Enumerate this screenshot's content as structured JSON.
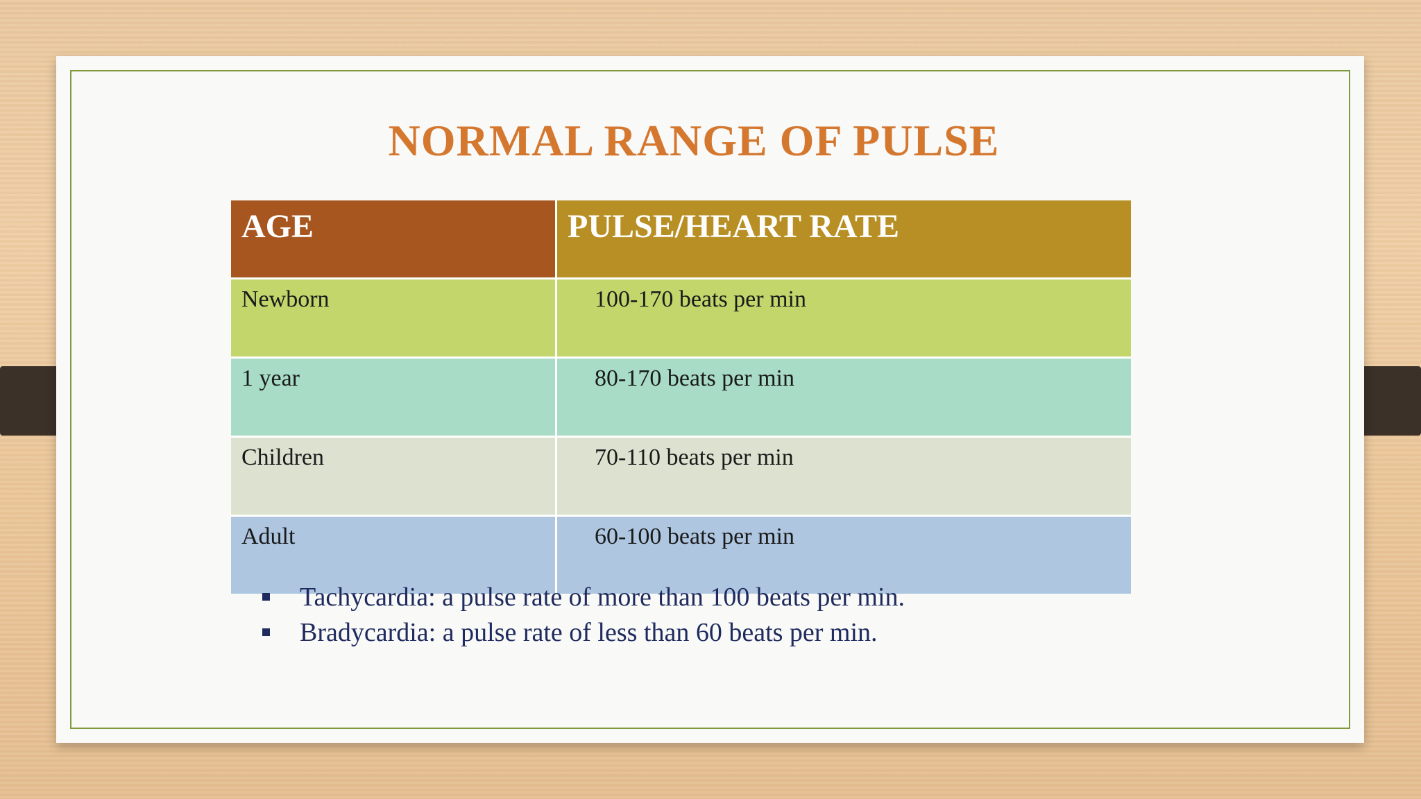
{
  "slide": {
    "title": "NORMAL RANGE OF PULSE"
  },
  "table": {
    "headers": [
      "AGE",
      "PULSE/HEART RATE"
    ],
    "rows": [
      {
        "age": "Newborn",
        "rate": "100-170 beats per min"
      },
      {
        "age": "1 year",
        "rate": "80-170 beats per min"
      },
      {
        "age": "Children",
        "rate": "70-110 beats per min"
      },
      {
        "age": "Adult",
        "rate": "60-100 beats per min"
      }
    ]
  },
  "bullets": [
    "Tachycardia: a pulse rate of  more than 100 beats per min.",
    "Bradycardia: a pulse rate of  less than 60 beats per min."
  ],
  "colors": {
    "title": "#d5782f",
    "header_age": "#a7561f",
    "header_rate": "#b88f24",
    "row_newborn": "#c3d66c",
    "row_1_year": "#a8dcc6",
    "row_children": "#dde2d0",
    "row_adult": "#aec6e0",
    "bullet_text": "#1f2b5e"
  }
}
